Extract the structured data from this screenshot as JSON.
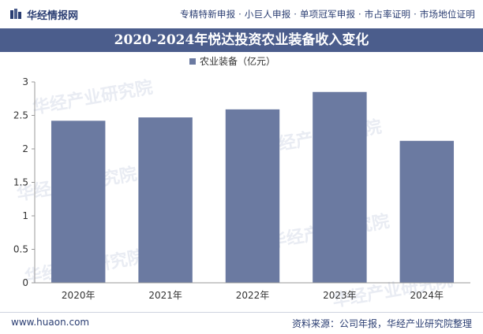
{
  "header": {
    "brand": "华经情报网",
    "services": "专精特新申报 · 小巨人申报 · 单项冠军申报 · 市占率证明 · 市场地位证明"
  },
  "watermark": {
    "text": "华经产业研究院",
    "url": "www.huaon.com"
  },
  "chart_data": {
    "type": "bar",
    "title": "2020-2024年悦达投资农业装备收入变化",
    "categories": [
      "2020年",
      "2021年",
      "2022年",
      "2023年",
      "2024年"
    ],
    "series": [
      {
        "name": "农业装备（亿元）",
        "values": [
          2.42,
          2.47,
          2.59,
          2.85,
          2.12
        ]
      }
    ],
    "xlabel": "",
    "ylabel": "",
    "ylim": [
      0,
      3
    ],
    "yticks": [
      0,
      0.5,
      1,
      1.5,
      2,
      2.5,
      3
    ],
    "ytick_labels": [
      "0",
      "0.5",
      "1",
      "1.5",
      "2",
      "2.5",
      "3"
    ],
    "legend": "top-center",
    "grid": false,
    "bar_color": "#6b7aa1"
  },
  "footer": {
    "website": "www.huaon.com",
    "source": "资料来源：公司年报，华经产业研究院整理"
  }
}
